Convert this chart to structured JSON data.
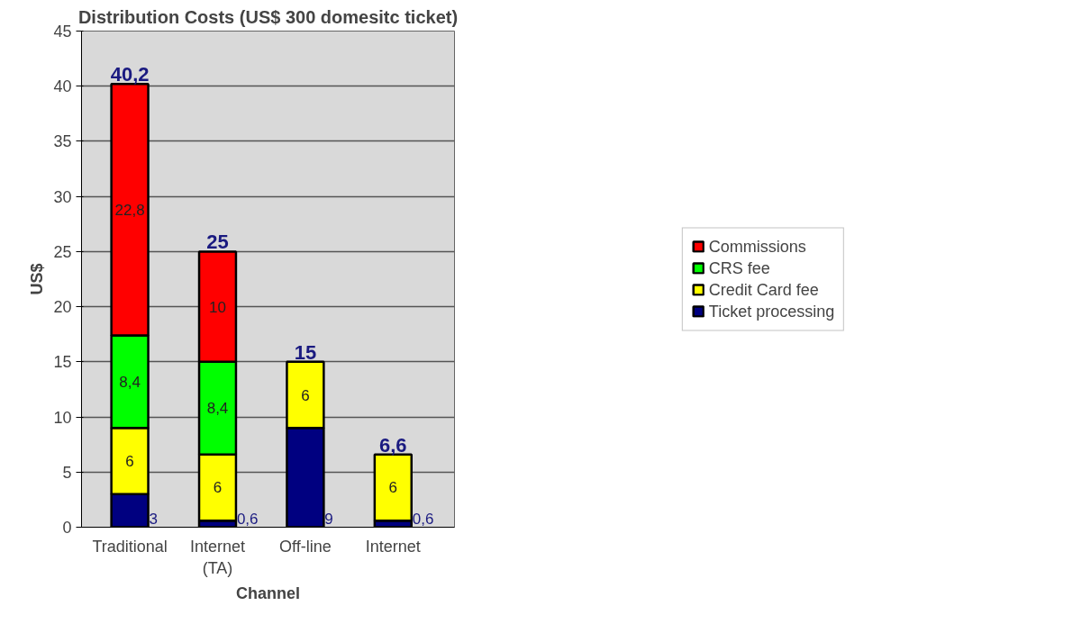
{
  "chart_data": {
    "type": "bar",
    "stacked": true,
    "title": "Distribution Costs (US$ 300 domesitc ticket)",
    "xlabel": "Channel",
    "ylabel": "US$",
    "categories": [
      "Traditional",
      "Internet\n(TA)",
      "Off-line",
      "Internet"
    ],
    "series": [
      {
        "name": "Ticket processing",
        "color": "#000080",
        "values": [
          3,
          0.6,
          9,
          0.6
        ],
        "value_labels": [
          "3",
          "0,6",
          "9",
          "0,6"
        ]
      },
      {
        "name": "Credit Card fee",
        "color": "#ffff00",
        "values": [
          6,
          6,
          6,
          6
        ],
        "value_labels": [
          "6",
          "6",
          "6",
          "6"
        ]
      },
      {
        "name": "CRS fee",
        "color": "#00ff00",
        "values": [
          8.4,
          8.4,
          null,
          null
        ],
        "value_labels": [
          "8,4",
          "8,4",
          null,
          null
        ]
      },
      {
        "name": "Commissions",
        "color": "#ff0000",
        "values": [
          22.8,
          10,
          null,
          null
        ],
        "value_labels": [
          "22,8",
          "10",
          null,
          null
        ]
      }
    ],
    "totals": [
      "40,2",
      "25",
      "15",
      "6,6"
    ],
    "ylim": [
      0,
      45
    ],
    "yticks": [
      0,
      5,
      10,
      15,
      20,
      25,
      30,
      35,
      40,
      45
    ],
    "grid": "y",
    "legend": "right"
  }
}
